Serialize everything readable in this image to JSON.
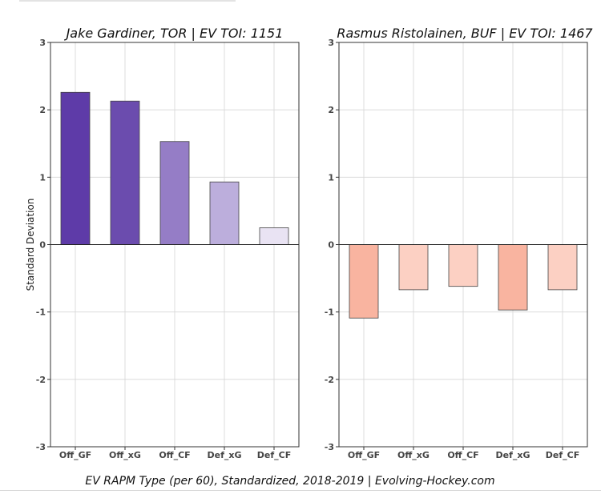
{
  "chart_data": [
    {
      "type": "bar",
      "title": "Jake Gardiner, TOR  |  EV TOI: 1151",
      "ylabel": "Standard Deviation",
      "categories": [
        "Off_GF",
        "Off_xG",
        "Off_CF",
        "Def_xG",
        "Def_CF"
      ],
      "values": [
        2.26,
        2.13,
        1.53,
        0.93,
        0.25
      ],
      "colors": [
        "#5e3ba8",
        "#6b4cae",
        "#957dc6",
        "#bcaedc",
        "#e9e3f3"
      ],
      "ylim": [
        -3,
        3
      ],
      "yticks": [
        "3",
        "2",
        "1",
        "0",
        "-1",
        "-2",
        "-3"
      ],
      "grid": true
    },
    {
      "type": "bar",
      "title": "Rasmus Ristolainen, BUF  |  EV TOI: 1467",
      "ylabel": "",
      "categories": [
        "Off_GF",
        "Off_xG",
        "Off_CF",
        "Def_xG",
        "Def_CF"
      ],
      "values": [
        -1.09,
        -0.67,
        -0.62,
        -0.97,
        -0.67
      ],
      "colors": [
        "#f9b4a0",
        "#fcd0c3",
        "#fcd0c3",
        "#f9b4a0",
        "#fcd0c3"
      ],
      "ylim": [
        -3,
        3
      ],
      "yticks": [
        "3",
        "2",
        "1",
        "0",
        "-1",
        "-2",
        "-3"
      ],
      "grid": true
    }
  ],
  "caption": "EV RAPM Type (per 60), Standardized, 2018-2019    |    Evolving-Hockey.com"
}
